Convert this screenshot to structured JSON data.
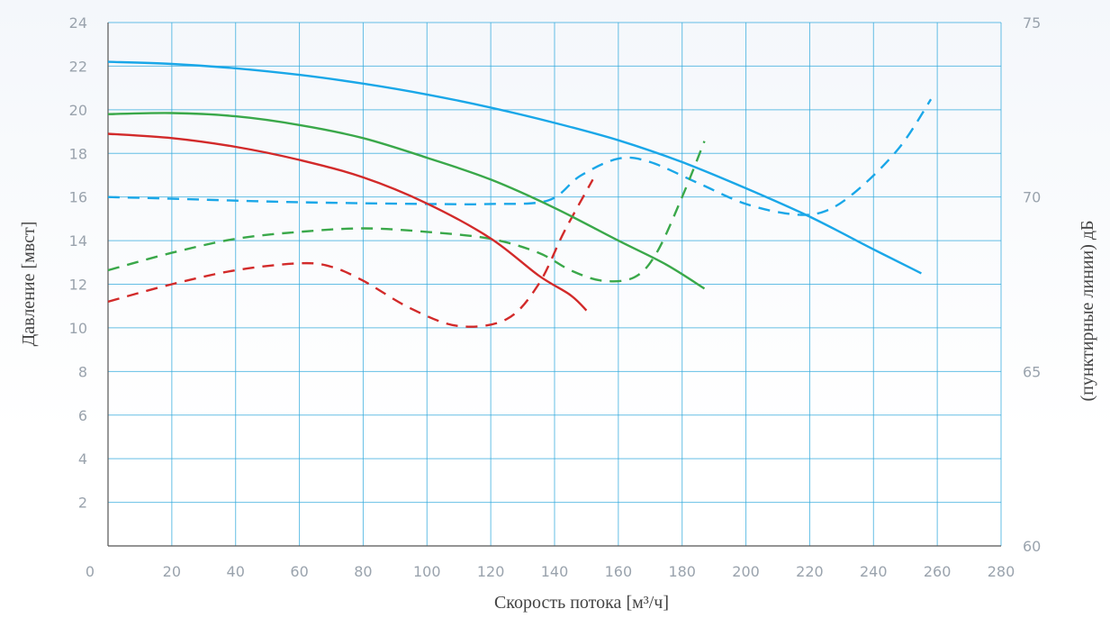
{
  "chart_data": {
    "type": "line",
    "xlabel": "Скорость потока [м³/ч]",
    "ylabel_left": "Давление [мвст]",
    "ylabel_right": "(пунктирные линии) дБ",
    "xlim": [
      0,
      280
    ],
    "ylim_left": [
      0,
      24
    ],
    "ylim_right": [
      60,
      75
    ],
    "x_ticks": [
      0,
      20,
      40,
      60,
      80,
      100,
      120,
      140,
      160,
      180,
      200,
      220,
      240,
      260,
      280
    ],
    "y_left_ticks": [
      2,
      4,
      6,
      8,
      10,
      12,
      14,
      16,
      18,
      20,
      22,
      24
    ],
    "y_right_ticks": [
      60,
      65,
      70,
      75
    ],
    "grid": true,
    "colors": {
      "blue": "#1aa7e8",
      "green": "#3aa84a",
      "red": "#d22a2a"
    },
    "pressure_series": [
      {
        "color": "blue",
        "x": [
          0,
          20,
          40,
          60,
          80,
          100,
          120,
          140,
          160,
          180,
          200,
          220,
          240,
          255
        ],
        "y": [
          22.2,
          22.1,
          21.9,
          21.6,
          21.2,
          20.7,
          20.1,
          19.4,
          18.6,
          17.6,
          16.4,
          15.1,
          13.6,
          12.5
        ]
      },
      {
        "color": "green",
        "x": [
          0,
          20,
          40,
          60,
          80,
          100,
          120,
          140,
          160,
          175,
          187
        ],
        "y": [
          19.8,
          19.85,
          19.7,
          19.3,
          18.7,
          17.8,
          16.8,
          15.5,
          14.0,
          12.9,
          11.8
        ]
      },
      {
        "color": "red",
        "x": [
          0,
          20,
          40,
          60,
          80,
          100,
          120,
          135,
          145,
          150
        ],
        "y": [
          18.9,
          18.7,
          18.3,
          17.7,
          16.9,
          15.7,
          14.1,
          12.4,
          11.5,
          10.8
        ]
      }
    ],
    "noise_series": [
      {
        "color": "blue",
        "x": [
          0,
          20,
          60,
          100,
          120,
          138,
          148,
          160,
          170,
          185,
          200,
          215,
          225,
          235,
          248,
          258
        ],
        "y": [
          70.0,
          69.95,
          69.85,
          69.8,
          69.8,
          69.9,
          70.6,
          71.1,
          71.0,
          70.4,
          69.8,
          69.5,
          69.6,
          70.2,
          71.4,
          72.8
        ]
      },
      {
        "color": "green",
        "x": [
          0,
          20,
          40,
          60,
          80,
          100,
          120,
          135,
          145,
          155,
          165,
          172,
          180,
          187
        ],
        "y": [
          67.9,
          68.4,
          68.8,
          69.0,
          69.1,
          69.0,
          68.8,
          68.4,
          67.9,
          67.6,
          67.7,
          68.4,
          70.0,
          71.6
        ]
      },
      {
        "color": "red",
        "x": [
          0,
          20,
          40,
          60,
          70,
          80,
          95,
          110,
          125,
          135,
          143,
          152
        ],
        "y": [
          67.0,
          67.5,
          67.9,
          68.1,
          68.0,
          67.6,
          66.8,
          66.3,
          66.5,
          67.5,
          69.0,
          70.5
        ]
      }
    ]
  }
}
